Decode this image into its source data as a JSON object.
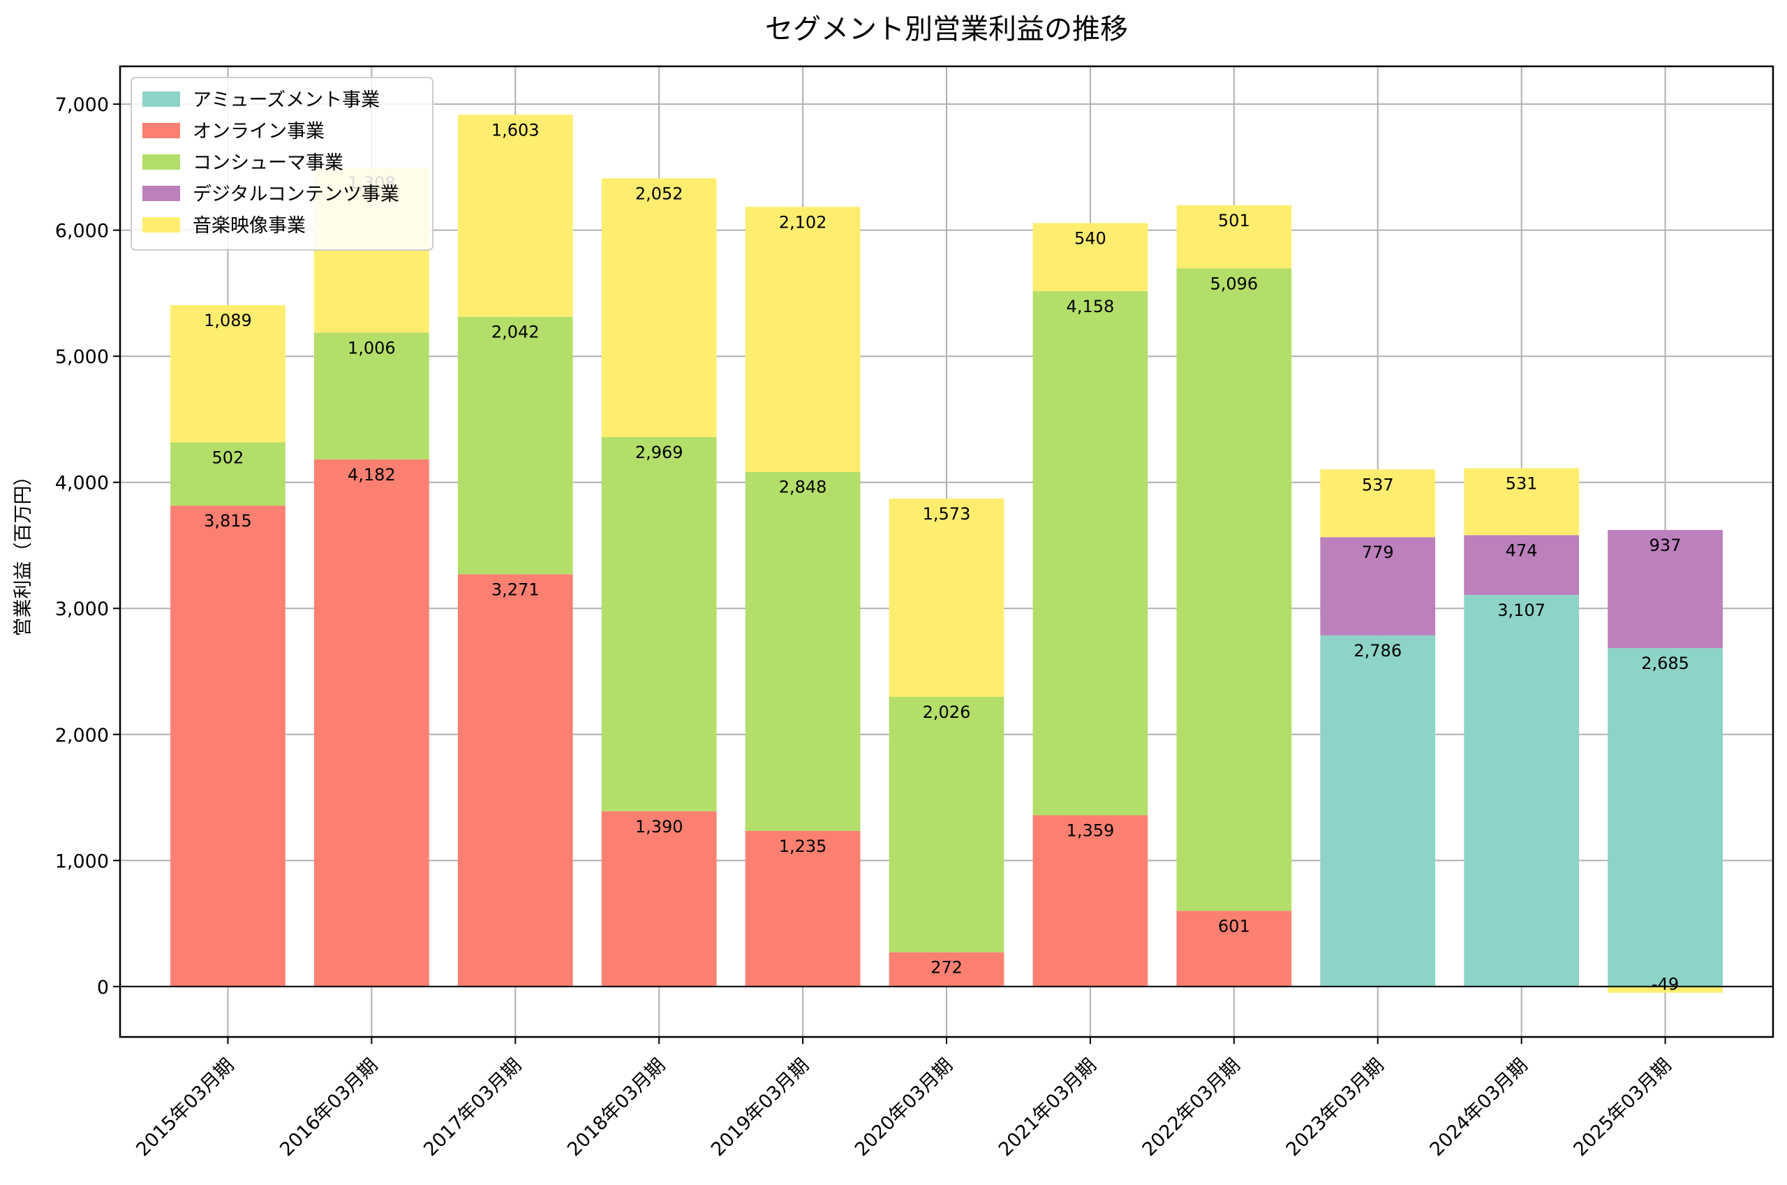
{
  "chart_data": {
    "type": "bar",
    "stacked": true,
    "title": "セグメント別営業利益の推移",
    "xlabel": "",
    "ylabel": "営業利益（百万円）",
    "ylim": [
      -400,
      7300
    ],
    "yticks": [
      0,
      1000,
      2000,
      3000,
      4000,
      5000,
      6000,
      7000
    ],
    "ytick_labels": [
      "0",
      "1,000",
      "2,000",
      "3,000",
      "4,000",
      "5,000",
      "6,000",
      "7,000"
    ],
    "grid": true,
    "legend_position": "top-left",
    "categories": [
      "2015年03月期",
      "2016年03月期",
      "2017年03月期",
      "2018年03月期",
      "2019年03月期",
      "2020年03月期",
      "2021年03月期",
      "2022年03月期",
      "2023年03月期",
      "2024年03月期",
      "2025年03月期"
    ],
    "series": [
      {
        "name": "アミューズメント事業",
        "color": "#8dd3c7",
        "values": [
          null,
          null,
          null,
          null,
          null,
          null,
          null,
          null,
          2786,
          3107,
          2685
        ]
      },
      {
        "name": "オンライン事業",
        "color": "#fb8072",
        "values": [
          3815,
          4182,
          3271,
          1390,
          1235,
          272,
          1359,
          601,
          null,
          null,
          null
        ]
      },
      {
        "name": "コンシューマ事業",
        "color": "#b3de69",
        "values": [
          502,
          1006,
          2042,
          2969,
          2848,
          2026,
          4158,
          5096,
          null,
          null,
          null
        ]
      },
      {
        "name": "デジタルコンテンツ事業",
        "color": "#bc80bd",
        "values": [
          null,
          null,
          null,
          null,
          null,
          null,
          null,
          null,
          779,
          474,
          937
        ]
      },
      {
        "name": "音楽映像事業",
        "color": "#ffed6f",
        "values": [
          1089,
          1308,
          1603,
          2052,
          2102,
          1573,
          540,
          501,
          537,
          531,
          -49
        ]
      }
    ]
  }
}
